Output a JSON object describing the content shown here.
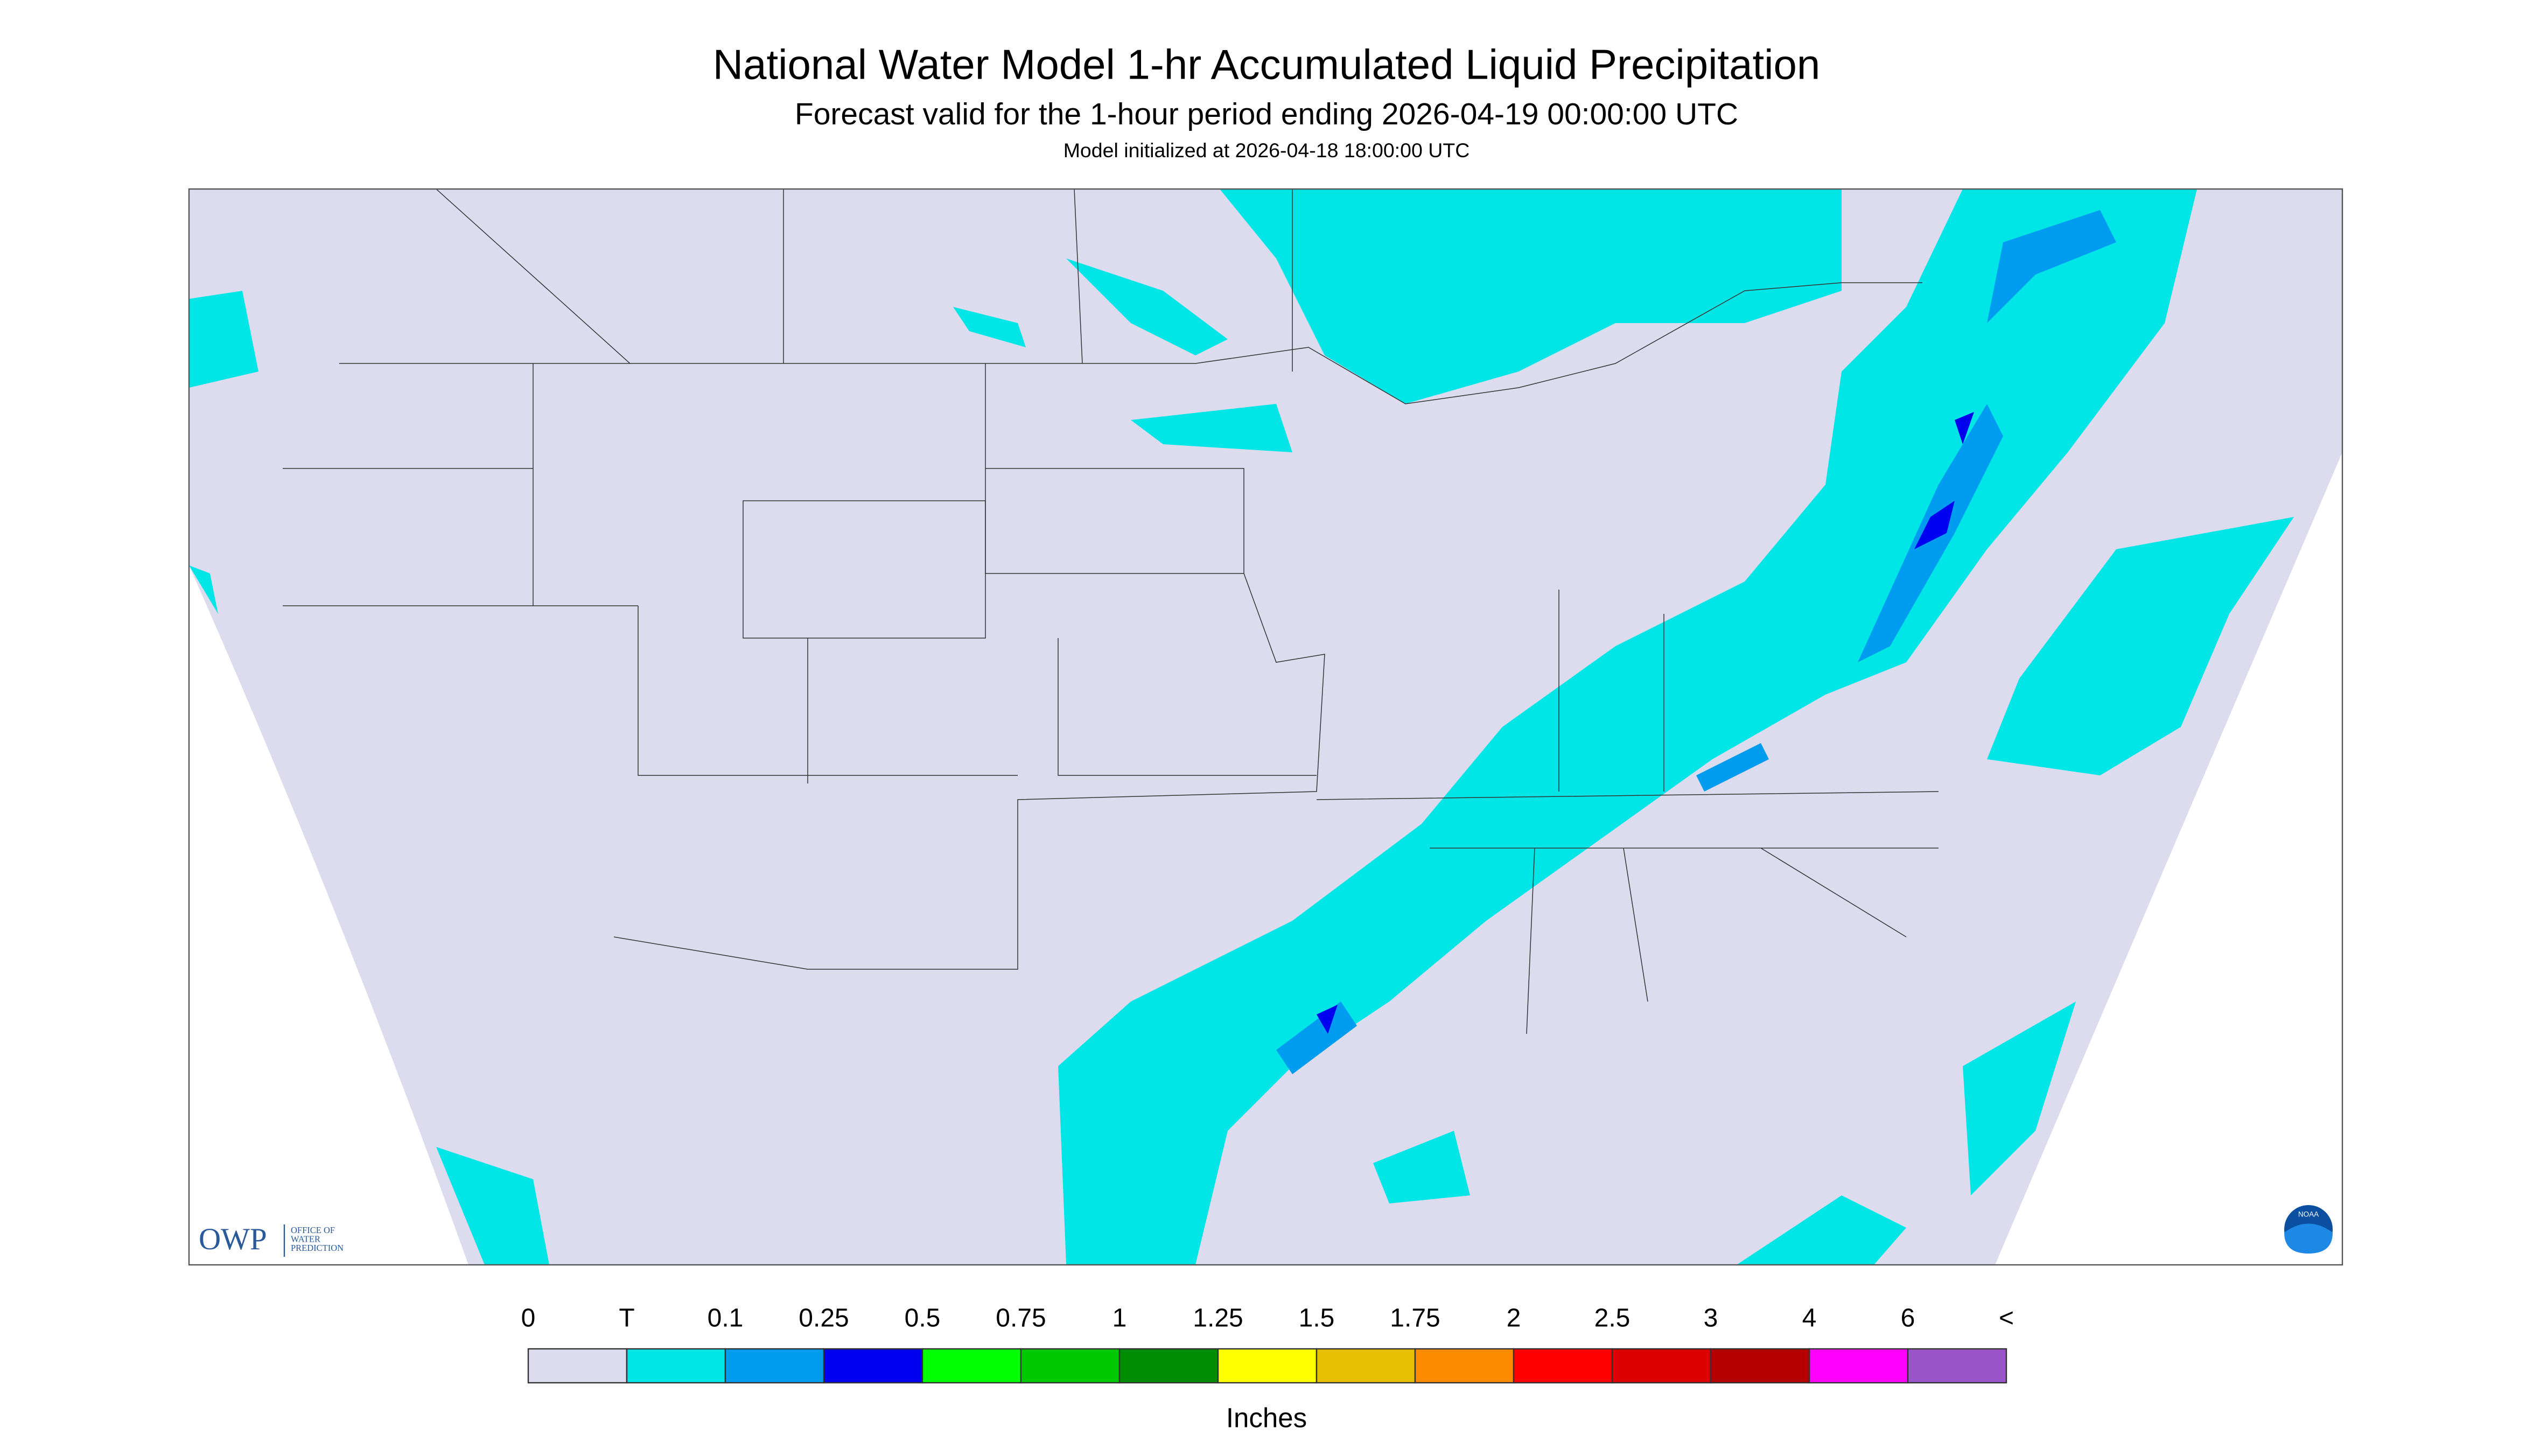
{
  "header": {
    "title": "National Water Model 1-hr Accumulated Liquid Precipitation",
    "subtitle": "Forecast valid for the 1-hour period ending 2026-04-19 00:00:00 UTC",
    "initialized": "Model initialized at 2026-04-18 18:00:00 UTC"
  },
  "legend": {
    "labels": [
      "0",
      "T",
      "0.1",
      "0.25",
      "0.5",
      "0.75",
      "1",
      "1.25",
      "1.5",
      "1.75",
      "2",
      "2.5",
      "3",
      "4",
      "6",
      "<"
    ],
    "colors": [
      "#dcdcee",
      "#00e6e6",
      "#009cf0",
      "#0000f0",
      "#00ff00",
      "#00c800",
      "#008c00",
      "#ffff00",
      "#e6bf00",
      "#ff8c00",
      "#ff0000",
      "#dc0000",
      "#b40000",
      "#ff00ff",
      "#9955c8"
    ],
    "unit": "Inches"
  },
  "logos": {
    "owp": "OWP",
    "owp_lines": [
      "OFFICE OF",
      "WATER",
      "PREDICTION"
    ],
    "noaa": "NOAA"
  }
}
